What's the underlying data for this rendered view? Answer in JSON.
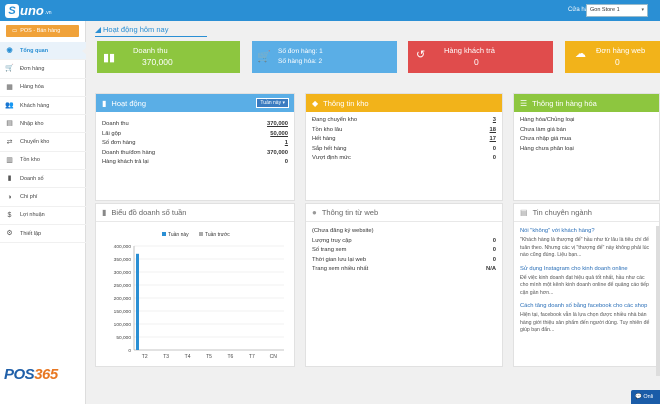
{
  "header": {
    "logo_initial": "S",
    "logo_text": "uno",
    "logo_suffix": ".vn",
    "store_label": "Cửa hàng",
    "store_value": "Gon Store 1"
  },
  "sidebar": {
    "pos_button": "POS - Bán hàng",
    "items": [
      {
        "label": "Tổng quan",
        "icon": "dashboard-icon"
      },
      {
        "label": "Đơn hàng",
        "icon": "cart-icon"
      },
      {
        "label": "Hàng hóa",
        "icon": "box-icon"
      },
      {
        "label": "Khách hàng",
        "icon": "users-icon"
      },
      {
        "label": "Nhập kho",
        "icon": "import-icon"
      },
      {
        "label": "Chuyển kho",
        "icon": "transfer-icon"
      },
      {
        "label": "Tồn kho",
        "icon": "warehouse-icon"
      },
      {
        "label": "Doanh số",
        "icon": "chart-icon"
      },
      {
        "label": "Chi phí",
        "icon": "expense-icon"
      },
      {
        "label": "Lợi nhuận",
        "icon": "profit-icon"
      },
      {
        "label": "Thiết lập",
        "icon": "settings-icon"
      }
    ],
    "brand_prefix": "POS",
    "brand_accent": "365"
  },
  "main": {
    "title": "Hoạt động hôm nay",
    "stats": [
      {
        "label": "Doanh thu",
        "value": "370,000",
        "color": "#8dc63f",
        "icon": "bar-chart-icon"
      },
      {
        "label": "Số đơn hàng: 1",
        "value": "Số hàng hóa: 2",
        "color": "#5aaee6",
        "icon": "cart-icon"
      },
      {
        "label": "Hàng khách trả",
        "value": "0",
        "color": "#e04c4c",
        "icon": "return-icon"
      },
      {
        "label": "Đơn hàng web",
        "value": "0",
        "color": "#f2b31a",
        "icon": "cloud-icon"
      }
    ],
    "activity": {
      "title": "Hoạt động",
      "dropdown": "Tuần này",
      "rows": [
        {
          "label": "Doanh thu",
          "value": "370,000"
        },
        {
          "label": "Lãi gộp",
          "value": "50,000"
        },
        {
          "label": "Số đơn hàng",
          "value": "1"
        },
        {
          "label": "Doanh thu/đơn hàng",
          "value": "370,000"
        },
        {
          "label": "Hàng khách trả lại",
          "value": "0"
        }
      ]
    },
    "stock": {
      "title": "Thông tin kho",
      "rows": [
        {
          "label": "Đang chuyển kho",
          "value": "3"
        },
        {
          "label": "Tồn kho lâu",
          "value": "18"
        },
        {
          "label": "Hết hàng",
          "value": "17"
        },
        {
          "label": "Sắp hết hàng",
          "value": "0"
        },
        {
          "label": "Vượt định mức",
          "value": "0"
        }
      ]
    },
    "goods": {
      "title": "Thông tin hàng hóa",
      "rows": [
        "Hàng hóa/Chủng loại",
        "Chưa làm giá bán",
        "Chưa nhập giá mua",
        "Hàng chưa phân loại"
      ]
    },
    "web": {
      "title": "Thông tin từ web",
      "rows": [
        {
          "label": "(Chưa đăng ký website)",
          "value": ""
        },
        {
          "label": "Lượng truy cập",
          "value": "0"
        },
        {
          "label": "Số trang xem",
          "value": "0"
        },
        {
          "label": "Thời gian lưu lại web",
          "value": "0"
        },
        {
          "label": "Trang xem nhiều nhất",
          "value": "N/A"
        }
      ]
    },
    "news": {
      "title": "Tin chuyên ngành",
      "items": [
        {
          "link": "Nói \"không\" với khách hàng?",
          "text": "\"Khách hàng là thượng đế\" hầu như từ lâu là tiêu chí để tuân theo. Nhưng các vị \"thượng đế\" này không phải lúc nào cũng đúng. Liệu bạn..."
        },
        {
          "link": "Sử dụng Instagram cho kinh doanh online",
          "text": "Để việc kinh doanh đạt hiệu quả tốt nhất, hầu như các cho mình một kênh kinh doanh online để quảng cáo tiếp cận gần hơn..."
        },
        {
          "link": "Cách tăng doanh số bằng facebook cho các shop",
          "text": "Hiện tại, facebook vẫn là lựa chọn được nhiều nhà bán hàng giới thiệu sản phẩm đến người dùng. Tuy nhiên để giúp bạn đẩn..."
        }
      ]
    },
    "chat_label": "Onli"
  },
  "chart_data": {
    "type": "bar",
    "title": "Biểu đồ doanh số tuần",
    "categories": [
      "T2",
      "T3",
      "T4",
      "T5",
      "T6",
      "T7",
      "CN"
    ],
    "series": [
      {
        "name": "Tuần này",
        "values": [
          370000,
          0,
          0,
          0,
          0,
          0,
          0
        ],
        "color": "#2a8fd4"
      },
      {
        "name": "Tuần trước",
        "values": [
          0,
          0,
          0,
          0,
          0,
          0,
          0
        ],
        "color": "#aaaaaa"
      }
    ],
    "yticks": [
      "0",
      "50,000",
      "100,000",
      "150,000",
      "200,000",
      "250,000",
      "300,000",
      "350,000",
      "400,000"
    ],
    "ylim": [
      0,
      400000
    ],
    "grid": true,
    "legend": "top"
  }
}
